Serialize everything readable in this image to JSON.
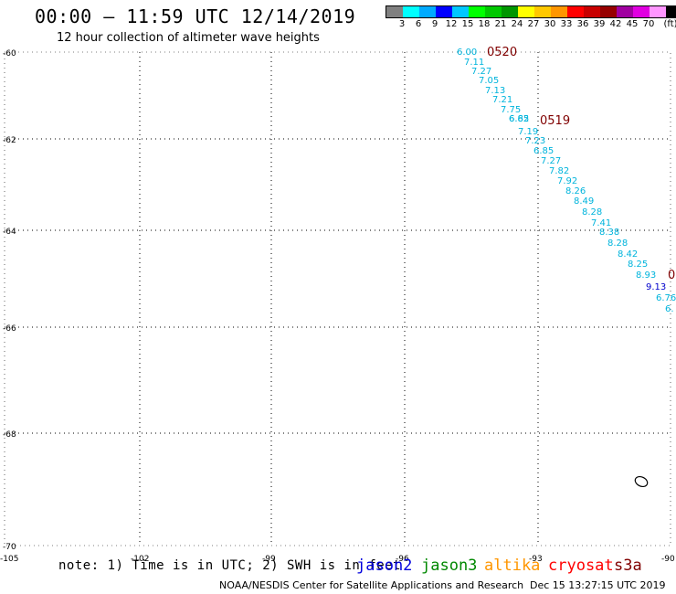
{
  "header": {
    "title": "00:00 – 11:59 UTC 12/14/2019",
    "subtitle": "12 hour collection of altimeter wave heights"
  },
  "legend": {
    "colors": [
      "#808080",
      "#00ffff",
      "#00aaff",
      "#0000ff",
      "#00c8ff",
      "#00ff00",
      "#00c800",
      "#009600",
      "#ffff00",
      "#ffc800",
      "#ff9600",
      "#ff0000",
      "#c80000",
      "#960000",
      "#a000a0",
      "#e000e0",
      "#ff96ff",
      "#000000"
    ],
    "labels": [
      "3",
      "6",
      "9",
      "12",
      "15",
      "18",
      "21",
      "24",
      "27",
      "30",
      "33",
      "36",
      "39",
      "42",
      "45",
      "70",
      "(ft)"
    ]
  },
  "map": {
    "lat_labels": [
      "-60",
      "-62",
      "-64",
      "-66",
      "-68",
      "-70"
    ],
    "lon_labels": [
      "-105",
      "-102",
      "-99",
      "-96",
      "-93",
      "-90"
    ],
    "pass_labels": [
      "0520",
      "0519",
      "0"
    ],
    "pass_color": "#800000",
    "obs_color": "#00b4dc",
    "obs_values": [
      "6.00",
      "7.11",
      "7.27",
      "7.05",
      "7.13",
      "7.21",
      "7.75",
      "6.62",
      "6.85",
      "7.19",
      "7.23",
      "6.85",
      "7.27",
      "7.82",
      "7.92",
      "8.26",
      "8.49",
      "8.28",
      "7.41",
      "8.38",
      "8.28",
      "8.42",
      "8.25",
      "8.93",
      "9.13",
      "6.76",
      "6."
    ]
  },
  "footer": {
    "note": "note: 1) Time is in UTC; 2) SWH is in feet",
    "satellites": [
      {
        "name": "jason2",
        "color": "#0000dd"
      },
      {
        "name": "jason3",
        "color": "#008800"
      },
      {
        "name": "altika",
        "color": "#ff9600"
      },
      {
        "name": "cryosat",
        "color": "#ff0000"
      },
      {
        "name": "s3a",
        "color": "#800000"
      }
    ],
    "credit": "NOAA/NESDIS Center for Satellite Applications and Research",
    "timestamp": "Dec 15 13:27:15 UTC 2019"
  }
}
